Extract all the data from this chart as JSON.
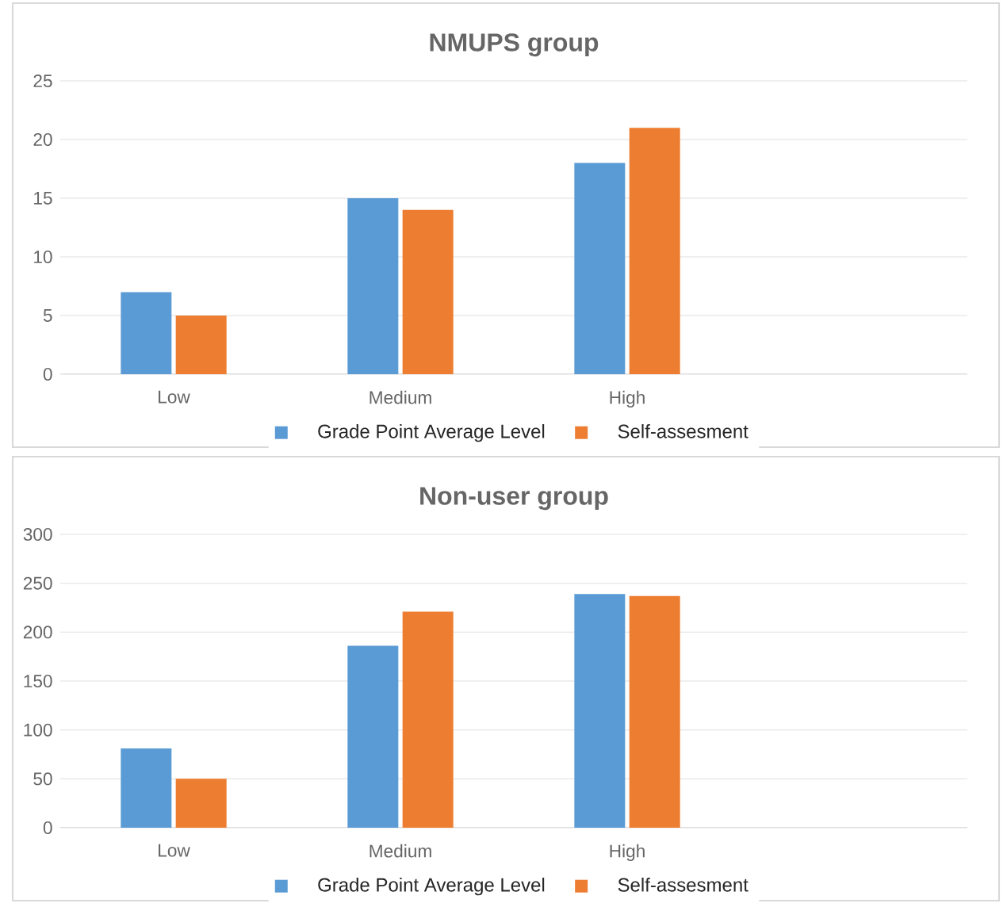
{
  "chart_data": [
    {
      "type": "bar",
      "title": "NMUPS group",
      "categories": [
        "Low",
        "Medium",
        "High",
        null
      ],
      "series": [
        {
          "name": "Grade Point Average Level",
          "color": "#5b9bd5",
          "values": [
            7,
            15,
            18,
            null
          ]
        },
        {
          "name": "Self-assesment",
          "color": "#ed7d31",
          "values": [
            5,
            14,
            21,
            null
          ]
        }
      ],
      "ylim": [
        0,
        25
      ],
      "yticks": [
        0,
        5,
        10,
        15,
        20,
        25
      ],
      "grid": "y",
      "legend": "bottom"
    },
    {
      "type": "bar",
      "title": "Non-user group",
      "categories": [
        "Low",
        "Medium",
        "High",
        null
      ],
      "series": [
        {
          "name": "Grade Point Average Level",
          "color": "#5b9bd5",
          "values": [
            81,
            186,
            239,
            null
          ]
        },
        {
          "name": "Self-assesment",
          "color": "#ed7d31",
          "values": [
            50,
            221,
            237,
            null
          ]
        }
      ],
      "ylim": [
        0,
        300
      ],
      "yticks": [
        0,
        50,
        100,
        150,
        200,
        250,
        300
      ],
      "grid": "y",
      "legend": "bottom"
    }
  ]
}
